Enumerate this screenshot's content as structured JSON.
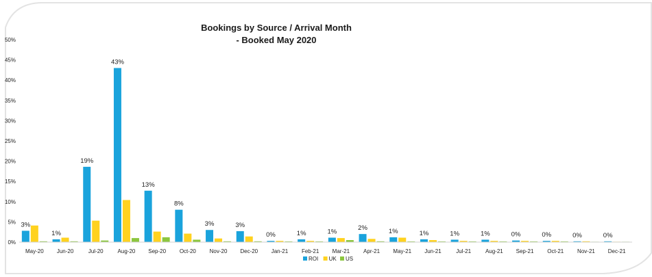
{
  "chart_data": {
    "type": "bar",
    "title_lines": [
      "Bookings by Source / Arrival Month",
      "- Booked May 2020"
    ],
    "xlabel": "",
    "ylabel": "",
    "ylim": [
      0,
      50
    ],
    "yticks": [
      "0%",
      "5%",
      "10%",
      "15%",
      "20%",
      "25%",
      "30%",
      "35%",
      "40%",
      "45%",
      "50%"
    ],
    "categories": [
      "May-20",
      "Jun-20",
      "Jul-20",
      "Aug-20",
      "Sep-20",
      "Oct-20",
      "Nov-20",
      "Dec-20",
      "Jan-21",
      "Feb-21",
      "Mar-21",
      "Apr-21",
      "May-21",
      "Jun-21",
      "Jul-21",
      "Aug-21",
      "Sep-21",
      "Oct-21",
      "Nov-21",
      "Dec-21"
    ],
    "series": [
      {
        "name": "ROI",
        "color": "#1aa3dc",
        "values": [
          2.8,
          0.7,
          18.6,
          43.0,
          12.7,
          8.0,
          3.0,
          2.7,
          0.3,
          0.7,
          1.1,
          2.0,
          1.2,
          0.7,
          0.6,
          0.6,
          0.4,
          0.3,
          0.2,
          0.2
        ]
      },
      {
        "name": "UK",
        "color": "#ffd21f",
        "values": [
          4.1,
          1.1,
          5.3,
          10.4,
          2.6,
          2.1,
          0.9,
          1.4,
          0.3,
          0.3,
          1.0,
          0.8,
          1.1,
          0.5,
          0.3,
          0.3,
          0.3,
          0.3,
          0.2,
          0.0
        ]
      },
      {
        "name": "US",
        "color": "#8cc63e",
        "values": [
          0.2,
          0.2,
          0.4,
          1.0,
          1.2,
          0.6,
          0.2,
          0.2,
          0.1,
          0.1,
          0.5,
          0.2,
          0.1,
          0.1,
          0.1,
          0.1,
          0.1,
          0.1,
          0.0,
          0.0
        ]
      }
    ],
    "data_labels": [
      "3%",
      "1%",
      "19%",
      "43%",
      "13%",
      "8%",
      "3%",
      "3%",
      "0%",
      "1%",
      "1%",
      "2%",
      "1%",
      "1%",
      "1%",
      "1%",
      "0%",
      "0%",
      "0%",
      "0%"
    ],
    "legend_position": "bottom",
    "grid": false
  }
}
